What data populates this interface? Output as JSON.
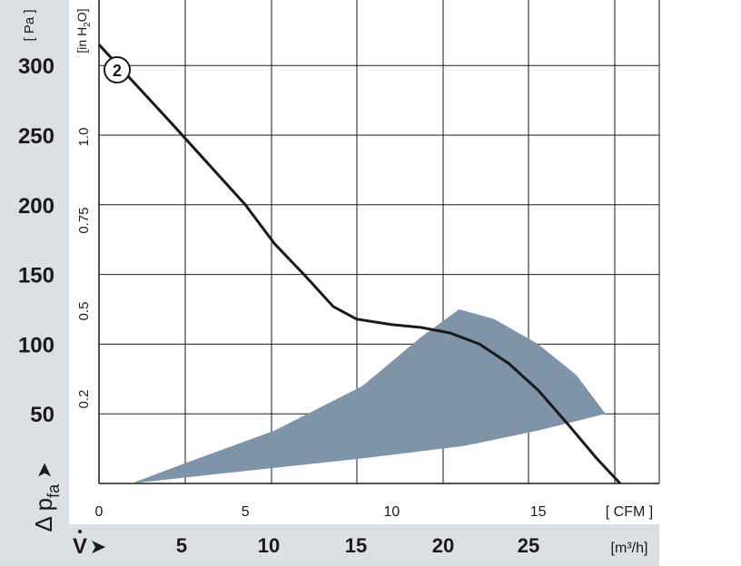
{
  "chart_data": {
    "type": "line",
    "series": [
      {
        "label": "2",
        "x": [
          0,
          2.5,
          5,
          6,
          7,
          8,
          8.8,
          10,
          11,
          12,
          13,
          14,
          15,
          16,
          17,
          17.8
        ],
        "y": [
          315,
          258,
          200,
          172,
          150,
          127,
          118,
          114,
          112,
          108,
          100,
          86,
          67,
          43,
          18,
          0
        ]
      }
    ],
    "operating_area": {
      "upper": {
        "x": [
          1.1,
          3,
          6,
          9,
          11,
          12.3
        ],
        "y": [
          0,
          15,
          38,
          70,
          105,
          125
        ]
      },
      "lower": {
        "x": [
          1.1,
          5,
          9,
          12.5,
          15,
          17.3
        ],
        "y": [
          0,
          9,
          18,
          27,
          38,
          50
        ]
      },
      "right_edge": {
        "x": [
          12.3,
          13.5,
          15,
          16.3,
          17.3
        ],
        "y": [
          125,
          118,
          100,
          78,
          50
        ]
      }
    },
    "xlim": [
      0,
      19
    ],
    "ylim": [
      0,
      346
    ],
    "grid": true,
    "axes": {
      "pa": {
        "unit": "[ Pa ]",
        "ticks": [
          "300",
          "250",
          "200",
          "150",
          "100",
          "50"
        ],
        "values": [
          300,
          250,
          200,
          150,
          100,
          50
        ]
      },
      "in_h2o": {
        "unit_pre": "[in H",
        "unit_sub": "2",
        "unit_post": "O]",
        "ticks": [
          "1.0",
          "0.75",
          "0.5",
          "0.2"
        ],
        "values": [
          1.0,
          0.75,
          0.5,
          0.2
        ]
      },
      "cfm": {
        "unit": "[ CFM ]",
        "ticks": [
          "0",
          "5",
          "10",
          "15"
        ],
        "values": [
          0,
          5,
          10,
          15
        ]
      },
      "m3h": {
        "unit": "[m³/h]",
        "ticks": [
          "5",
          "10",
          "15",
          "20",
          "25"
        ],
        "values": [
          5,
          10,
          15,
          20,
          25
        ]
      }
    },
    "ylabel_main": "Δ p",
    "ylabel_sub": "fa",
    "ylabel_arrow": "➤",
    "xlabel_symbol": "V",
    "xlabel_arrow": "➤",
    "colors": {
      "curve": "#1a1a1a",
      "area": "#7f94a9",
      "grid": "#1a1a1a",
      "band": "#dcdfe4"
    }
  }
}
